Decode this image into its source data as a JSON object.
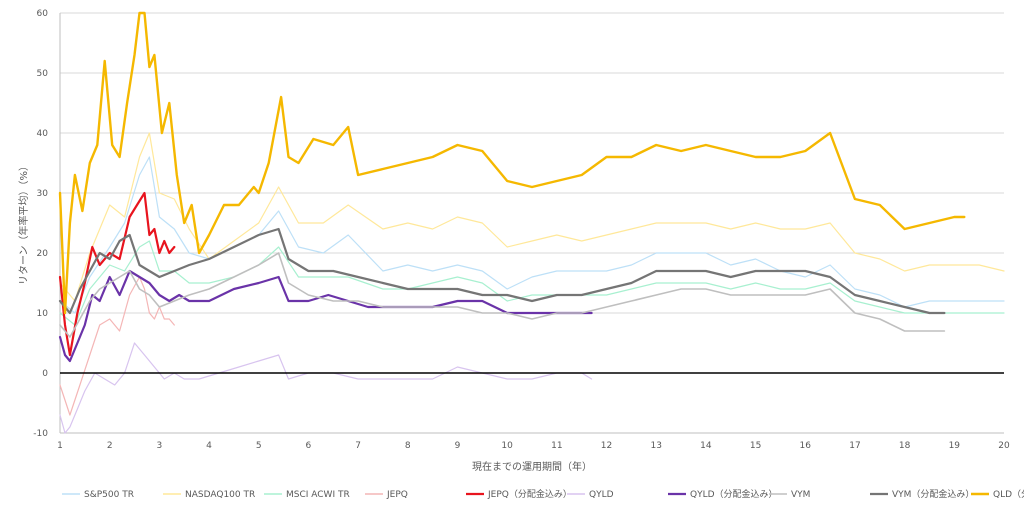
{
  "chart_data": {
    "type": "line",
    "title": "",
    "xlabel": "現在までの運用期間（年）",
    "ylabel": "リターン（年率平均）（%）",
    "xlim": [
      1,
      20
    ],
    "ylim": [
      -10,
      60
    ],
    "x_ticks": [
      "1",
      "2",
      "3",
      "4",
      "5",
      "6",
      "7",
      "8",
      "9",
      "10",
      "11",
      "12",
      "13",
      "14",
      "15",
      "16",
      "17",
      "18",
      "19",
      "20"
    ],
    "y_ticks": [
      "-10",
      "0",
      "10",
      "20",
      "30",
      "40",
      "50",
      "60"
    ],
    "grid": "horizontal",
    "legend_position": "bottom",
    "series": [
      {
        "name": "S&P500 TR",
        "color": "#bde0f7",
        "width": 1.2,
        "x": [
          1,
          1.3,
          1.6,
          2,
          2.3,
          2.6,
          2.8,
          3,
          3.3,
          3.6,
          4,
          4.5,
          5,
          5.4,
          5.8,
          6.3,
          6.8,
          7.5,
          8,
          8.5,
          9,
          9.5,
          10,
          10.5,
          11,
          11.5,
          12,
          12.5,
          13,
          13.5,
          14,
          14.5,
          15,
          15.5,
          16,
          16.5,
          17,
          17.5,
          18,
          18.5,
          19,
          19.5,
          20
        ],
        "y": [
          12,
          10,
          16,
          21,
          25,
          33,
          36,
          26,
          24,
          20,
          19,
          21,
          23,
          27,
          21,
          20,
          23,
          17,
          18,
          17,
          18,
          17,
          14,
          16,
          17,
          17,
          17,
          18,
          20,
          20,
          20,
          18,
          19,
          17,
          16,
          18,
          14,
          13,
          11,
          12,
          12,
          12,
          12
        ]
      },
      {
        "name": "NASDAQ100 TR",
        "color": "#ffe89a",
        "width": 1.2,
        "x": [
          1,
          1.3,
          1.6,
          2,
          2.3,
          2.6,
          2.8,
          3,
          3.3,
          3.6,
          4,
          4.5,
          5,
          5.4,
          5.8,
          6.3,
          6.8,
          7.5,
          8,
          8.5,
          9,
          9.5,
          10,
          10.5,
          11,
          11.5,
          12,
          12.5,
          13,
          13.5,
          14,
          14.5,
          15,
          15.5,
          16,
          16.5,
          17,
          17.5,
          18,
          18.5,
          19,
          19.5,
          20
        ],
        "y": [
          15,
          12,
          20,
          28,
          26,
          36,
          40,
          30,
          29,
          24,
          19,
          22,
          25,
          31,
          25,
          25,
          28,
          24,
          25,
          24,
          26,
          25,
          21,
          22,
          23,
          22,
          23,
          24,
          25,
          25,
          25,
          24,
          25,
          24,
          24,
          25,
          20,
          19,
          17,
          18,
          18,
          18,
          17
        ]
      },
      {
        "name": "MSCI ACWI TR",
        "color": "#a8f0d0",
        "width": 1.2,
        "x": [
          1,
          1.3,
          1.6,
          2,
          2.3,
          2.6,
          2.8,
          3,
          3.3,
          3.6,
          4,
          4.5,
          5,
          5.4,
          5.8,
          6.3,
          6.8,
          7.5,
          8,
          8.5,
          9,
          9.5,
          10,
          10.5,
          11,
          11.5,
          12,
          12.5,
          13,
          13.5,
          14,
          14.5,
          15,
          15.5,
          16,
          16.5,
          17,
          17.5,
          18,
          18.5,
          19,
          19.5,
          20
        ],
        "y": [
          10,
          8,
          14,
          18,
          17,
          21,
          22,
          17,
          17,
          15,
          15,
          16,
          18,
          21,
          16,
          16,
          16,
          14,
          14,
          15,
          16,
          15,
          12,
          13,
          13,
          13,
          13,
          14,
          15,
          15,
          15,
          14,
          15,
          14,
          14,
          15,
          12,
          11,
          10,
          10,
          10,
          10,
          10
        ]
      },
      {
        "name": "JEPQ",
        "color": "#f4b6b6",
        "width": 1.2,
        "x": [
          1,
          1.2,
          1.4,
          1.6,
          1.8,
          2,
          2.2,
          2.4,
          2.6,
          2.7,
          2.8,
          2.9,
          3,
          3.1,
          3.2,
          3.3
        ],
        "y": [
          -2,
          -7,
          -2,
          3,
          8,
          9,
          7,
          13,
          16,
          14,
          10,
          9,
          11,
          9,
          9,
          8
        ]
      },
      {
        "name": "JEPQ（分配金込み）",
        "color": "#e8141e",
        "width": 2.2,
        "x": [
          1,
          1.1,
          1.2,
          1.35,
          1.5,
          1.65,
          1.8,
          2,
          2.2,
          2.4,
          2.55,
          2.7,
          2.8,
          2.9,
          3,
          3.1,
          3.2,
          3.3
        ],
        "y": [
          16,
          8,
          3,
          10,
          15,
          21,
          18,
          20,
          19,
          26,
          28,
          30,
          23,
          24,
          20,
          22,
          20,
          21
        ]
      },
      {
        "name": "QYLD",
        "color": "#d8c4ef",
        "width": 1.2,
        "x": [
          1,
          1.1,
          1.2,
          1.35,
          1.5,
          1.7,
          1.9,
          2.1,
          2.3,
          2.5,
          2.7,
          2.9,
          3.1,
          3.3,
          3.5,
          3.8,
          4.2,
          4.6,
          5,
          5.4,
          5.6,
          6,
          6.5,
          7,
          7.5,
          8,
          8.5,
          9,
          9.5,
          10,
          10.5,
          11,
          11.5,
          11.7
        ],
        "y": [
          -7,
          -10,
          -9,
          -6,
          -3,
          0,
          -1,
          -2,
          0,
          5,
          3,
          1,
          -1,
          0,
          -1,
          -1,
          0,
          1,
          2,
          3,
          -1,
          0,
          0,
          -1,
          -1,
          -1,
          -1,
          1,
          0,
          -1,
          -1,
          0,
          0,
          -1
        ]
      },
      {
        "name": "QYLD（分配金込み）",
        "color": "#6a33a8",
        "width": 2.2,
        "x": [
          1,
          1.1,
          1.2,
          1.35,
          1.5,
          1.65,
          1.8,
          2,
          2.2,
          2.4,
          2.6,
          2.8,
          3,
          3.2,
          3.4,
          3.6,
          4,
          4.5,
          5,
          5.4,
          5.6,
          6,
          6.4,
          6.8,
          7.2,
          7.6,
          8,
          8.5,
          9,
          9.5,
          10,
          10.5,
          11,
          11.5,
          11.7
        ],
        "y": [
          6,
          3,
          2,
          5,
          8,
          13,
          12,
          16,
          13,
          17,
          16,
          15,
          13,
          12,
          13,
          12,
          12,
          14,
          15,
          16,
          12,
          12,
          13,
          12,
          11,
          11,
          11,
          11,
          12,
          12,
          10,
          10,
          10,
          10,
          10
        ]
      },
      {
        "name": "VYM",
        "color": "#bfbfbf",
        "width": 1.6,
        "x": [
          1,
          1.2,
          1.4,
          1.6,
          1.8,
          2,
          2.2,
          2.4,
          2.6,
          2.8,
          3,
          3.3,
          3.6,
          4,
          4.5,
          5,
          5.4,
          5.6,
          6,
          6.5,
          7,
          7.5,
          8,
          8.5,
          9,
          9.5,
          10,
          10.5,
          11,
          11.5,
          12,
          12.5,
          13,
          13.5,
          14,
          14.5,
          15,
          15.5,
          16,
          16.5,
          17,
          17.5,
          18,
          18.5,
          18.8
        ],
        "y": [
          8,
          6,
          9,
          12,
          14,
          15,
          16,
          17,
          14,
          13,
          11,
          12,
          13,
          14,
          16,
          18,
          20,
          15,
          13,
          12,
          12,
          11,
          11,
          11,
          11,
          10,
          10,
          9,
          10,
          10,
          11,
          12,
          13,
          14,
          14,
          13,
          13,
          13,
          13,
          14,
          10,
          9,
          7,
          7,
          7
        ]
      },
      {
        "name": "VYM（分配金込み）",
        "color": "#757575",
        "width": 2.2,
        "x": [
          1,
          1.2,
          1.4,
          1.6,
          1.8,
          2,
          2.2,
          2.4,
          2.6,
          2.8,
          3,
          3.3,
          3.6,
          4,
          4.5,
          5,
          5.4,
          5.6,
          6,
          6.5,
          7,
          7.5,
          8,
          8.5,
          9,
          9.5,
          10,
          10.5,
          11,
          11.5,
          12,
          12.5,
          13,
          13.5,
          14,
          14.5,
          15,
          15.5,
          16,
          16.5,
          17,
          17.5,
          18,
          18.5,
          18.8
        ],
        "y": [
          12,
          10,
          14,
          17,
          20,
          19,
          22,
          23,
          18,
          17,
          16,
          17,
          18,
          19,
          21,
          23,
          24,
          19,
          17,
          17,
          16,
          15,
          14,
          14,
          14,
          13,
          13,
          12,
          13,
          13,
          14,
          15,
          17,
          17,
          17,
          16,
          17,
          17,
          17,
          16,
          13,
          12,
          11,
          10,
          10
        ]
      },
      {
        "name": "QLD（分配金込み）",
        "color": "#f5b800",
        "width": 2.4,
        "x": [
          1,
          1.1,
          1.2,
          1.3,
          1.45,
          1.6,
          1.75,
          1.9,
          2.05,
          2.2,
          2.35,
          2.5,
          2.6,
          2.7,
          2.8,
          2.9,
          3.05,
          3.2,
          3.35,
          3.5,
          3.65,
          3.8,
          4,
          4.3,
          4.6,
          4.9,
          5,
          5.2,
          5.45,
          5.6,
          5.8,
          6.1,
          6.5,
          6.8,
          7,
          7.5,
          8,
          8.5,
          9,
          9.5,
          10,
          10.5,
          11,
          11.5,
          12,
          12.5,
          13,
          13.5,
          14,
          14.5,
          15,
          15.5,
          16,
          16.5,
          17,
          17.5,
          18,
          18.5,
          19,
          19.2
        ],
        "y": [
          30,
          10,
          25,
          33,
          27,
          35,
          38,
          52,
          38,
          36,
          45,
          53,
          60,
          60,
          51,
          53,
          40,
          45,
          33,
          25,
          28,
          20,
          23,
          28,
          28,
          31,
          30,
          35,
          46,
          36,
          35,
          39,
          38,
          41,
          33,
          34,
          35,
          36,
          38,
          37,
          32,
          31,
          32,
          33,
          36,
          36,
          38,
          37,
          38,
          37,
          36,
          36,
          37,
          40,
          29,
          28,
          24,
          25,
          26,
          26
        ]
      }
    ]
  }
}
